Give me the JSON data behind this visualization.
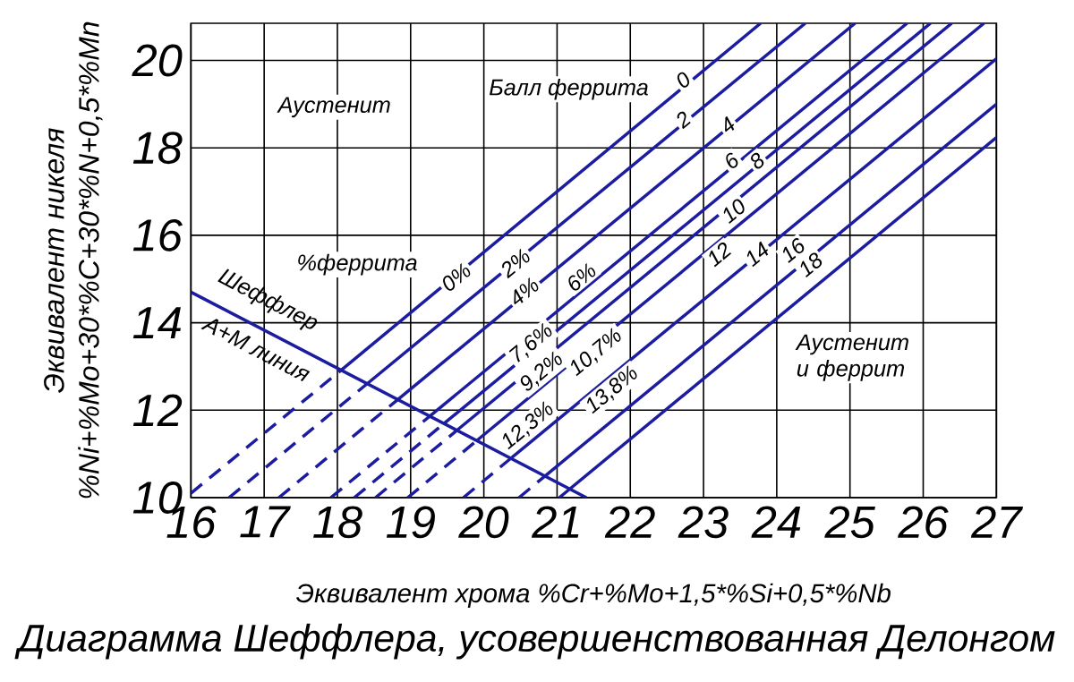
{
  "chart_data": {
    "type": "line",
    "title": "Диаграмма Шеффлера, усовершенствованная Делонгом",
    "xlabel": "Эквивалент хрома %Cr+%Mo+1,5*%Si+0,5*%Nb",
    "ylabel": "Эквивалент никеля",
    "xlim": [
      16,
      27
    ],
    "ylim": [
      10,
      20.85
    ],
    "xticks": [
      16,
      17,
      18,
      19,
      20,
      21,
      22,
      23,
      24,
      25,
      26,
      27
    ],
    "yticks": [
      10,
      12,
      14,
      16,
      18,
      20
    ],
    "grid": true,
    "series": [
      {
        "color": "#1c1ca0",
        "line_style": "solid",
        "x": [
          16,
          21.4
        ],
        "values": [
          14.7,
          10
        ]
      },
      {
        "color": "#1c1ca0",
        "line_style": "solid",
        "x": [
          18.04,
          23.78
        ],
        "values": [
          12.9,
          20.85
        ]
      },
      {
        "color": "#1c1ca0",
        "line_style": "solid",
        "x": [
          18.41,
          24.39
        ],
        "values": [
          12.61,
          20.85
        ]
      },
      {
        "color": "#1c1ca0",
        "line_style": "solid",
        "x": [
          18.83,
          25.07
        ],
        "values": [
          12.25,
          20.85
        ]
      },
      {
        "color": "#1c1ca0",
        "line_style": "solid",
        "x": [
          19.26,
          25.78
        ],
        "values": [
          11.86,
          20.85
        ]
      },
      {
        "color": "#1c1ca0",
        "line_style": "solid",
        "x": [
          19.46,
          26.1
        ],
        "values": [
          11.7,
          20.85
        ]
      },
      {
        "color": "#1c1ca0",
        "line_style": "solid",
        "x": [
          19.64,
          26.39
        ],
        "values": [
          11.55,
          20.85
        ]
      },
      {
        "color": "#1c1ca0",
        "line_style": "solid",
        "x": [
          19.9,
          26.83
        ],
        "values": [
          11.3,
          20.85
        ]
      },
      {
        "color": "#1c1ca0",
        "line_style": "solid",
        "x": [
          20.37,
          27
        ],
        "values": [
          10.9,
          20.04
        ]
      },
      {
        "color": "#1c1ca0",
        "line_style": "solid",
        "x": [
          20.84,
          27
        ],
        "values": [
          10.5,
          19.0
        ]
      },
      {
        "color": "#1c1ca0",
        "line_style": "solid",
        "x": [
          21.03,
          27
        ],
        "values": [
          10,
          18.24
        ]
      },
      {
        "color": "#1c1ca0",
        "line_style": "dashed",
        "x": [
          16,
          18.04
        ],
        "values": [
          10.1,
          12.9
        ]
      },
      {
        "color": "#1c1ca0",
        "line_style": "dashed",
        "x": [
          16.52,
          18.41
        ],
        "values": [
          10,
          12.61
        ]
      },
      {
        "color": "#1c1ca0",
        "line_style": "dashed",
        "x": [
          17.2,
          18.83
        ],
        "values": [
          10,
          12.25
        ]
      },
      {
        "color": "#1c1ca0",
        "line_style": "dashed",
        "x": [
          17.91,
          19.26
        ],
        "values": [
          10,
          11.86
        ]
      },
      {
        "color": "#1c1ca0",
        "line_style": "dashed",
        "x": [
          18.23,
          19.46
        ],
        "values": [
          10,
          11.7
        ]
      },
      {
        "color": "#1c1ca0",
        "line_style": "dashed",
        "x": [
          18.52,
          19.64
        ],
        "values": [
          10,
          11.55
        ]
      },
      {
        "color": "#1c1ca0",
        "line_style": "dashed",
        "x": [
          18.96,
          19.9
        ],
        "values": [
          10,
          11.3
        ]
      },
      {
        "color": "#1c1ca0",
        "line_style": "dashed",
        "x": [
          19.72,
          20.37
        ],
        "values": [
          10,
          10.9
        ]
      },
      {
        "color": "#1c1ca0",
        "line_style": "dashed",
        "x": [
          20.48,
          20.84
        ],
        "values": [
          10,
          10.5
        ]
      }
    ],
    "annotations": [
      "%Ni+%Mo+30*%C+30*%N+0,5*%Mn",
      "Аустенит",
      "Аустенит и феррит",
      "Балл феррита",
      "%феррита",
      "Шеффлер",
      "А+М линия",
      {
        "text": "0",
        "x": 22.72,
        "y": 19.55
      },
      {
        "text": "2",
        "x": 22.72,
        "y": 18.65
      },
      {
        "text": "4",
        "x": 23.33,
        "y": 18.52
      },
      {
        "text": "6",
        "x": 23.38,
        "y": 17.7
      },
      {
        "text": "8",
        "x": 23.73,
        "y": 17.7
      },
      {
        "text": "10",
        "x": 23.41,
        "y": 16.56
      },
      {
        "text": "12",
        "x": 23.21,
        "y": 15.57
      },
      {
        "text": "14",
        "x": 23.73,
        "y": 15.57
      },
      {
        "text": "16",
        "x": 24.22,
        "y": 15.66
      },
      {
        "text": "18",
        "x": 24.46,
        "y": 15.33
      },
      {
        "text": "0%",
        "x": 19.62,
        "y": 15.04
      },
      {
        "text": "2%",
        "x": 20.43,
        "y": 15.37
      },
      {
        "text": "4%",
        "x": 20.55,
        "y": 14.71
      },
      {
        "text": "6%",
        "x": 21.33,
        "y": 15.04
      },
      {
        "text": "7,6%",
        "x": 20.65,
        "y": 13.52
      },
      {
        "text": "9,2%",
        "x": 20.79,
        "y": 12.87
      },
      {
        "text": "10,7%",
        "x": 21.53,
        "y": 13.32
      },
      {
        "text": "12,3%",
        "x": 20.6,
        "y": 11.64
      },
      {
        "text": "13,8%",
        "x": 21.75,
        "y": 12.46
      }
    ]
  }
}
